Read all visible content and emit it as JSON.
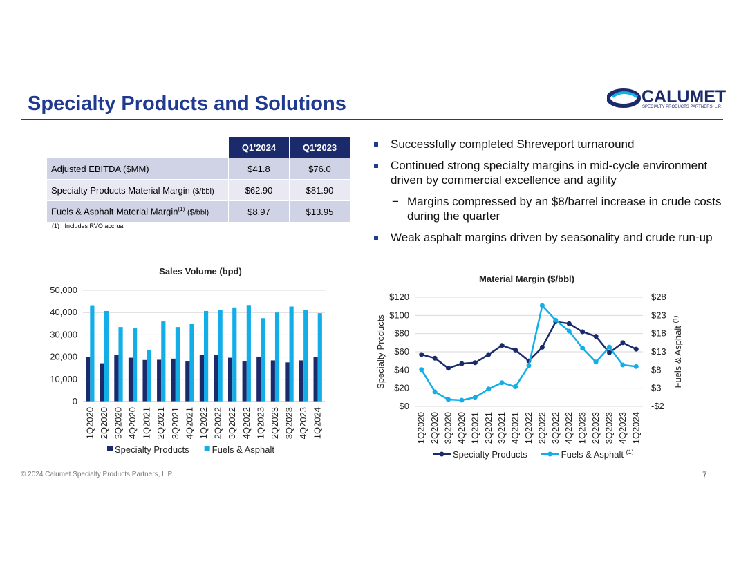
{
  "title": "Specialty Products and Solutions",
  "logo": {
    "name": "CALUMET",
    "tagline": "SPECIALTY PRODUCTS PARTNERS, L.P."
  },
  "table": {
    "header": [
      "Q1'2024",
      "Q1'2023"
    ],
    "rows": [
      {
        "label": "Adjusted EBITDA ($MM)",
        "values": [
          "$41.8",
          "$76.0"
        ]
      },
      {
        "label": "Specialty Products Material Margin",
        "unit": "($/bbl)",
        "values": [
          "$62.90",
          "$81.90"
        ]
      },
      {
        "label": "Fuels & Asphalt Material Margin",
        "sup": "(1)",
        "unit": "($/bbl)",
        "values": [
          "$8.97",
          "$13.95"
        ]
      }
    ],
    "footnote": {
      "marker": "(1)",
      "text": "Includes RVO accrual"
    }
  },
  "bullets": [
    {
      "text": "Successfully completed Shreveport turnaround",
      "level": 1
    },
    {
      "text": "Continued strong specialty margins in mid-cycle environment driven by commercial excellence and agility",
      "level": 1
    },
    {
      "text": "Margins compressed by an $8/barrel increase in crude costs during the quarter",
      "level": 2
    },
    {
      "text": "Weak asphalt margins driven by seasonality and crude run-up",
      "level": 1
    }
  ],
  "chart_data": [
    {
      "type": "bar",
      "title": "Sales Volume (bpd)",
      "categories": [
        "1Q2020",
        "2Q2020",
        "3Q2020",
        "4Q2020",
        "1Q2021",
        "2Q2021",
        "3Q2021",
        "4Q2021",
        "1Q2022",
        "2Q2022",
        "3Q2022",
        "4Q2022",
        "1Q2023",
        "2Q2023",
        "3Q2023",
        "4Q2023",
        "1Q2024"
      ],
      "series": [
        {
          "name": "Specialty Products",
          "color": "#1b2a6b",
          "values": [
            20000,
            17200,
            20800,
            19700,
            18700,
            18800,
            19300,
            18000,
            21000,
            20800,
            19700,
            18000,
            20200,
            18500,
            17600,
            18500,
            20000
          ]
        },
        {
          "name": "Fuels & Asphalt",
          "color": "#13aee8",
          "values": [
            43300,
            40700,
            33500,
            32900,
            23100,
            36000,
            33500,
            34800,
            40700,
            41000,
            42300,
            43400,
            37500,
            40000,
            42700,
            41300,
            39700
          ]
        }
      ],
      "ylim": [
        0,
        50000
      ],
      "yticks": [
        0,
        {
          "value": 10000,
          "label": "10,000"
        },
        {
          "value": 20000,
          "label": "20,000"
        },
        {
          "value": 30000,
          "label": "30,000"
        },
        {
          "value": 40000,
          "label": "40,000"
        },
        {
          "value": 50000,
          "label": "50,000"
        }
      ],
      "grid": true
    },
    {
      "type": "line",
      "title": "Material Margin ($/bbl)",
      "ylabel": "Specialty Products",
      "y2label": "Fuels & Asphalt",
      "y2label_sup": "(1)",
      "categories": [
        "1Q2020",
        "2Q2020",
        "3Q2020",
        "4Q2020",
        "1Q2021",
        "2Q2021",
        "3Q2021",
        "4Q2021",
        "1Q2022",
        "2Q2022",
        "3Q2022",
        "4Q2022",
        "1Q2023",
        "2Q2023",
        "3Q2023",
        "4Q2023",
        "1Q2024"
      ],
      "series": [
        {
          "name": "Specialty Products",
          "color": "#1b2a6b",
          "values": [
            57,
            53,
            42,
            47,
            48,
            57,
            67,
            62,
            50,
            65,
            93,
            91,
            82,
            77,
            59,
            70,
            62.9
          ]
        },
        {
          "name": "Fuels & Asphalt",
          "name_sup": "(1)",
          "color": "#13aee8",
          "axis": "y2",
          "values": [
            8.1,
            2.0,
            -0.1,
            -0.3,
            0.5,
            2.8,
            4.5,
            3.4,
            9.2,
            25.7,
            21.7,
            18.7,
            14.0,
            10.2,
            14.3,
            9.4,
            8.97
          ]
        }
      ],
      "ylim": [
        0,
        120
      ],
      "yticks": [
        {
          "value": 0,
          "label": "$0"
        },
        {
          "value": 20,
          "label": "$20"
        },
        {
          "value": 40,
          "label": "$40"
        },
        {
          "value": 60,
          "label": "$60"
        },
        {
          "value": 80,
          "label": "$80"
        },
        {
          "value": 100,
          "label": "$100"
        },
        {
          "value": 120,
          "label": "$120"
        }
      ],
      "y2lim": [
        -2,
        28
      ],
      "y2ticks": [
        {
          "value": -2,
          "label": "-$2"
        },
        {
          "value": 3,
          "label": "$3"
        },
        {
          "value": 8,
          "label": "$8"
        },
        {
          "value": 13,
          "label": "$13"
        },
        {
          "value": 18,
          "label": "$18"
        },
        {
          "value": 23,
          "label": "$23"
        },
        {
          "value": 28,
          "label": "$28"
        }
      ],
      "grid": true
    }
  ],
  "footer": {
    "copyright": "© 2024 Calumet Specialty Products Partners, L.P.",
    "page": "7"
  }
}
